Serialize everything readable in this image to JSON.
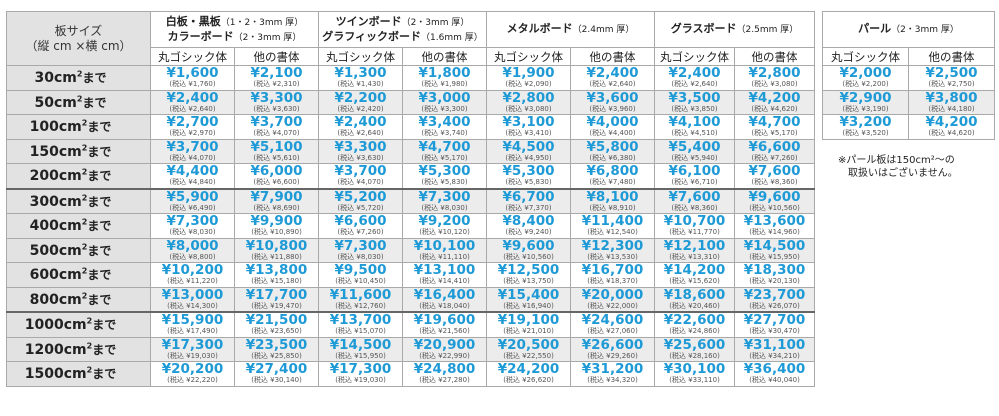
{
  "corner": {
    "line1": "板サイズ",
    "line2": "（縦 cm ×横 cm）"
  },
  "groups": [
    {
      "name1": "白板・黒板",
      "name1_note": "（1・2・3mm 厚）",
      "name2": "カラーボード",
      "name2_note": "（2・3mm 厚）"
    },
    {
      "name1": "ツインボード",
      "name1_note": "（2・3mm 厚）",
      "name2": "グラフィックボード",
      "name2_note": "（1.6mm 厚）"
    },
    {
      "name1": "メタルボード",
      "name1_note": "（2.4mm 厚）"
    },
    {
      "name1": "グラスボード",
      "name1_note": "（2.5mm 厚）"
    },
    {
      "name1": "パール",
      "name1_note": "（2・3mm 厚）"
    }
  ],
  "subheaders": {
    "a": "丸ゴシック体",
    "b": "他の書体"
  },
  "unit_suffix": "まで",
  "rows": [
    {
      "size": "30cm",
      "p": [
        [
          "¥1,600",
          "(税込 ¥1,760)"
        ],
        [
          "¥2,100",
          "(税込 ¥2,310)"
        ],
        [
          "¥1,300",
          "(税込 ¥1,430)"
        ],
        [
          "¥1,800",
          "(税込 ¥1,980)"
        ],
        [
          "¥1,900",
          "(税込 ¥2,090)"
        ],
        [
          "¥2,400",
          "(税込 ¥2,640)"
        ],
        [
          "¥2,400",
          "(税込 ¥2,640)"
        ],
        [
          "¥2,800",
          "(税込 ¥3,080)"
        ]
      ]
    },
    {
      "size": "50cm",
      "p": [
        [
          "¥2,400",
          "(税込 ¥2,640)"
        ],
        [
          "¥3,300",
          "(税込 ¥3,630)"
        ],
        [
          "¥2,200",
          "(税込 ¥2,420)"
        ],
        [
          "¥3,000",
          "(税込 ¥3,300)"
        ],
        [
          "¥2,800",
          "(税込 ¥3,080)"
        ],
        [
          "¥3,600",
          "(税込 ¥3,960)"
        ],
        [
          "¥3,500",
          "(税込 ¥3,850)"
        ],
        [
          "¥4,200",
          "(税込 ¥4,620)"
        ]
      ]
    },
    {
      "size": "100cm",
      "p": [
        [
          "¥2,700",
          "(税込 ¥2,970)"
        ],
        [
          "¥3,700",
          "(税込 ¥4,070)"
        ],
        [
          "¥2,400",
          "(税込 ¥2,640)"
        ],
        [
          "¥3,400",
          "(税込 ¥3,740)"
        ],
        [
          "¥3,100",
          "(税込 ¥3,410)"
        ],
        [
          "¥4,000",
          "(税込 ¥4,400)"
        ],
        [
          "¥4,100",
          "(税込 ¥4,510)"
        ],
        [
          "¥4,700",
          "(税込 ¥5,170)"
        ]
      ]
    },
    {
      "size": "150cm",
      "p": [
        [
          "¥3,700",
          "(税込 ¥4,070)"
        ],
        [
          "¥5,100",
          "(税込 ¥5,610)"
        ],
        [
          "¥3,300",
          "(税込 ¥3,630)"
        ],
        [
          "¥4,700",
          "(税込 ¥5,170)"
        ],
        [
          "¥4,500",
          "(税込 ¥4,950)"
        ],
        [
          "¥5,800",
          "(税込 ¥6,380)"
        ],
        [
          "¥5,400",
          "(税込 ¥5,940)"
        ],
        [
          "¥6,600",
          "(税込 ¥7,260)"
        ]
      ]
    },
    {
      "size": "200cm",
      "p": [
        [
          "¥4,400",
          "(税込 ¥4,840)"
        ],
        [
          "¥6,000",
          "(税込 ¥6,600)"
        ],
        [
          "¥3,700",
          "(税込 ¥4,070)"
        ],
        [
          "¥5,300",
          "(税込 ¥5,830)"
        ],
        [
          "¥5,300",
          "(税込 ¥5,830)"
        ],
        [
          "¥6,800",
          "(税込 ¥7,480)"
        ],
        [
          "¥6,100",
          "(税込 ¥6,710)"
        ],
        [
          "¥7,600",
          "(税込 ¥8,360)"
        ]
      ]
    },
    {
      "size": "300cm",
      "p": [
        [
          "¥5,900",
          "(税込 ¥6,490)"
        ],
        [
          "¥7,900",
          "(税込 ¥8,690)"
        ],
        [
          "¥5,200",
          "(税込 ¥5,720)"
        ],
        [
          "¥7,300",
          "(税込 ¥8,030)"
        ],
        [
          "¥6,700",
          "(税込 ¥7,370)"
        ],
        [
          "¥8,100",
          "(税込 ¥8,910)"
        ],
        [
          "¥7,600",
          "(税込 ¥8,360)"
        ],
        [
          "¥9,600",
          "(税込 ¥10,560)"
        ]
      ]
    },
    {
      "size": "400cm",
      "p": [
        [
          "¥7,300",
          "(税込 ¥8,030)"
        ],
        [
          "¥9,900",
          "(税込 ¥10,890)"
        ],
        [
          "¥6,600",
          "(税込 ¥7,260)"
        ],
        [
          "¥9,200",
          "(税込 ¥10,120)"
        ],
        [
          "¥8,400",
          "(税込 ¥9,240)"
        ],
        [
          "¥11,400",
          "(税込 ¥12,540)"
        ],
        [
          "¥10,700",
          "(税込 ¥11,770)"
        ],
        [
          "¥13,600",
          "(税込 ¥14,960)"
        ]
      ]
    },
    {
      "size": "500cm",
      "p": [
        [
          "¥8,000",
          "(税込 ¥8,800)"
        ],
        [
          "¥10,800",
          "(税込 ¥11,880)"
        ],
        [
          "¥7,300",
          "(税込 ¥8,030)"
        ],
        [
          "¥10,100",
          "(税込 ¥11,110)"
        ],
        [
          "¥9,600",
          "(税込 ¥10,560)"
        ],
        [
          "¥12,300",
          "(税込 ¥13,530)"
        ],
        [
          "¥12,100",
          "(税込 ¥13,310)"
        ],
        [
          "¥14,500",
          "(税込 ¥15,950)"
        ]
      ]
    },
    {
      "size": "600cm",
      "p": [
        [
          "¥10,200",
          "(税込 ¥11,220)"
        ],
        [
          "¥13,800",
          "(税込 ¥15,180)"
        ],
        [
          "¥9,500",
          "(税込 ¥10,450)"
        ],
        [
          "¥13,100",
          "(税込 ¥14,410)"
        ],
        [
          "¥12,500",
          "(税込 ¥13,750)"
        ],
        [
          "¥16,700",
          "(税込 ¥18,370)"
        ],
        [
          "¥14,200",
          "(税込 ¥15,620)"
        ],
        [
          "¥18,300",
          "(税込 ¥20,130)"
        ]
      ]
    },
    {
      "size": "800cm",
      "p": [
        [
          "¥13,000",
          "(税込 ¥14,300)"
        ],
        [
          "¥17,700",
          "(税込 ¥19,470)"
        ],
        [
          "¥11,600",
          "(税込 ¥12,760)"
        ],
        [
          "¥16,400",
          "(税込 ¥18,040)"
        ],
        [
          "¥15,400",
          "(税込 ¥16,940)"
        ],
        [
          "¥20,000",
          "(税込 ¥22,000)"
        ],
        [
          "¥18,600",
          "(税込 ¥20,460)"
        ],
        [
          "¥23,700",
          "(税込 ¥26,070)"
        ]
      ]
    },
    {
      "size": "1000cm",
      "p": [
        [
          "¥15,900",
          "(税込 ¥17,490)"
        ],
        [
          "¥21,500",
          "(税込 ¥23,650)"
        ],
        [
          "¥13,700",
          "(税込 ¥15,070)"
        ],
        [
          "¥19,600",
          "(税込 ¥21,560)"
        ],
        [
          "¥19,100",
          "(税込 ¥21,010)"
        ],
        [
          "¥24,600",
          "(税込 ¥27,060)"
        ],
        [
          "¥22,600",
          "(税込 ¥24,860)"
        ],
        [
          "¥27,700",
          "(税込 ¥30,470)"
        ]
      ]
    },
    {
      "size": "1200cm",
      "p": [
        [
          "¥17,300",
          "(税込 ¥19,030)"
        ],
        [
          "¥23,500",
          "(税込 ¥25,850)"
        ],
        [
          "¥14,500",
          "(税込 ¥15,950)"
        ],
        [
          "¥20,900",
          "(税込 ¥22,990)"
        ],
        [
          "¥20,500",
          "(税込 ¥22,550)"
        ],
        [
          "¥26,600",
          "(税込 ¥29,260)"
        ],
        [
          "¥25,600",
          "(税込 ¥28,160)"
        ],
        [
          "¥31,100",
          "(税込 ¥34,210)"
        ]
      ]
    },
    {
      "size": "1500cm",
      "p": [
        [
          "¥20,200",
          "(税込 ¥22,220)"
        ],
        [
          "¥27,400",
          "(税込 ¥30,140)"
        ],
        [
          "¥17,300",
          "(税込 ¥19,030)"
        ],
        [
          "¥24,800",
          "(税込 ¥27,280)"
        ],
        [
          "¥24,200",
          "(税込 ¥26,620)"
        ],
        [
          "¥31,200",
          "(税込 ¥34,320)"
        ],
        [
          "¥30,100",
          "(税込 ¥33,110)"
        ],
        [
          "¥36,400",
          "(税込 ¥40,040)"
        ]
      ]
    }
  ],
  "pearl_rows": [
    [
      [
        "¥2,000",
        "(税込 ¥2,200)"
      ],
      [
        "¥2,500",
        "(税込 ¥2,750)"
      ]
    ],
    [
      [
        "¥2,900",
        "(税込 ¥3,190)"
      ],
      [
        "¥3,800",
        "(税込 ¥4,180)"
      ]
    ],
    [
      [
        "¥3,200",
        "(税込 ¥3,520)"
      ],
      [
        "¥4,200",
        "(税込 ¥4,620)"
      ]
    ]
  ],
  "pearl_note": {
    "line1": "※パール板は150cm²〜の",
    "line2": "取扱いはございません。"
  }
}
